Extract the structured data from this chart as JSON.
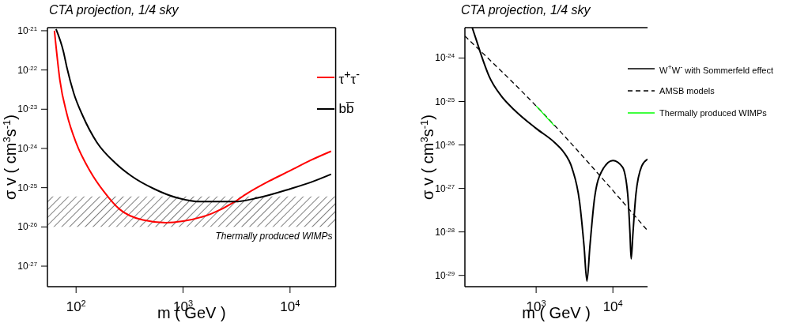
{
  "chart_data": [
    {
      "type": "line",
      "title": "CTA projection, 1/4 sky",
      "xlabel": "m  ( GeV )",
      "ylabel": "σ v  ( cm$^{3}$s$^{-1}$)",
      "log": "xy",
      "legend": "top right",
      "xlim": [
        54,
        26700
      ],
      "ylim": [
        3e-28,
        1.2e-21
      ],
      "xticks": [
        {
          "value": 100,
          "label": "10$^{2}$"
        },
        {
          "value": 1000,
          "label": "10$^{3}$"
        },
        {
          "value": 10000,
          "label": "10$^{4}$"
        }
      ],
      "yticks": [
        {
          "value": 1e-27,
          "label": "10$^{-27}$"
        },
        {
          "value": 1e-26,
          "label": "10$^{-26}$"
        },
        {
          "value": 1e-25,
          "label": "10$^{-25}$"
        },
        {
          "value": 1e-24,
          "label": "10$^{-24}$"
        },
        {
          "value": 1e-23,
          "label": "10$^{-23}$"
        },
        {
          "value": 1e-22,
          "label": "10$^{-22}$"
        },
        {
          "value": 1e-21,
          "label": "10$^{-21}$"
        }
      ],
      "bands": [
        {
          "axis": "y",
          "from": 1e-26,
          "to": 6e-26,
          "label": "Thermally produced WIMPs",
          "color": "#000000"
        }
      ],
      "series": [
        {
          "name": "τ$^{+}$τ$^{-}$",
          "color": "#ff0000",
          "x": [
            62.8,
            70.6,
            82,
            100,
            134.6,
            181,
            256,
            421,
            690,
            1000,
            1860,
            3050,
            3900,
            6400,
            10000,
            15600,
            24200
          ],
          "values": [
            1e-21,
            5.5e-23,
            7.6e-24,
            1.4e-24,
            2.7e-25,
            8.1e-26,
            2.8e-26,
            1.5e-26,
            1.28e-26,
            1.4e-26,
            2.2e-26,
            4.4e-26,
            6.9e-26,
            1.48e-25,
            2.7e-25,
            5e-25,
            8.5e-25
          ]
        },
        {
          "name": "bb̅",
          "color": "#000000",
          "x": [
            65,
            76.3,
            82,
            95,
            116,
            156,
            232,
            328,
            538,
            883,
            1450,
            3050,
            5000,
            10000,
            15600,
            24200
          ],
          "values": [
            1.1e-21,
            2.9e-22,
            1.17e-22,
            2.6e-23,
            6.6e-24,
            1.45e-24,
            4.3e-25,
            2e-25,
            9.3e-26,
            5.5e-26,
            4.4e-26,
            4.4e-26,
            5.5e-26,
            9.3e-26,
            1.37e-25,
            2.2e-25
          ]
        }
      ]
    },
    {
      "type": "line",
      "title": "CTA projection, 1/4 sky",
      "xlabel": "m  ( GeV )",
      "ylabel": "σ v  ( cm$^{3}$s$^{-1}$)",
      "log": "xy",
      "legend": "top right",
      "xlim": [
        118,
        28300
      ],
      "ylim": [
        5.5e-30,
        5e-24
      ],
      "xticks": [
        {
          "value": 1000,
          "label": "10$^{3}$"
        },
        {
          "value": 10000,
          "label": "10$^{4}$"
        }
      ],
      "yticks": [
        {
          "value": 1e-29,
          "label": "10$^{-29}$"
        },
        {
          "value": 1e-28,
          "label": "10$^{-28}$"
        },
        {
          "value": 1e-27,
          "label": "10$^{-27}$"
        },
        {
          "value": 1e-26,
          "label": "10$^{-26}$"
        },
        {
          "value": 1e-25,
          "label": "10$^{-25}$"
        },
        {
          "value": 1e-24,
          "label": "10$^{-24}$"
        }
      ],
      "series": [
        {
          "name": "W$^{+}$W$^{-}$ with Sommerfeld effect",
          "color": "#000000",
          "line_style": "solid",
          "x": [
            147,
            164,
            196,
            244,
            349,
            520,
            1000,
            1730,
            2250,
            2940,
            3680,
            4210,
            4590,
            5020,
            5740,
            7170,
            10000,
            13350,
            15600,
            16700,
            17300,
            18250,
            19950,
            23800,
            28300
          ],
          "values": [
            5e-24,
            2.8e-24,
            1.07e-24,
            3.8e-25,
            1.36e-25,
            6.4e-26,
            2.4e-26,
            1.15e-26,
            7.1e-27,
            2.9e-27,
            4.9e-28,
            4.7e-29,
            7.4e-30,
            4.7e-29,
            5.6e-28,
            2.5e-27,
            4.4e-27,
            3.1e-27,
            7.4e-28,
            9.3e-29,
            2.4e-29,
            9.3e-29,
            7.4e-28,
            3.3e-27,
            4.7e-27
          ]
        },
        {
          "name": "AMSB models",
          "color": "#000000",
          "line_style": "dashed",
          "x": [
            118,
            1000,
            28300
          ],
          "values": [
            3.2e-24,
            7.9e-26,
            1.07e-28
          ]
        },
        {
          "name": "Thermally produced WIMPs",
          "color": "#00ff00",
          "line_style": "solid",
          "x": [
            1000,
            1730
          ],
          "values": [
            7.9e-26,
            2.75e-26
          ]
        }
      ]
    }
  ]
}
